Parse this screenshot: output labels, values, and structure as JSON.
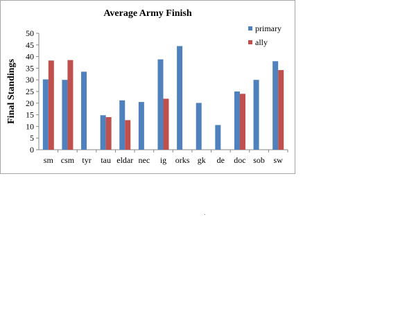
{
  "chart_data": {
    "type": "bar",
    "title": "Average Army Finish",
    "ylabel": "Final Standings",
    "xlabel": "",
    "ylim": [
      0,
      50
    ],
    "yticks": [
      0,
      5,
      10,
      15,
      20,
      25,
      30,
      35,
      40,
      45,
      50
    ],
    "grid": false,
    "legend_position": "top-right",
    "categories": [
      "sm",
      "csm",
      "tyr",
      "tau",
      "eldar",
      "nec",
      "ig",
      "orks",
      "gk",
      "de",
      "doc",
      "sob",
      "sw"
    ],
    "series": [
      {
        "name": "primary",
        "color": "#4f81bd",
        "values": [
          30.2,
          30.0,
          33.5,
          14.8,
          21.2,
          20.5,
          38.8,
          44.5,
          20.1,
          10.6,
          25.0,
          30.0,
          38.0
        ]
      },
      {
        "name": "ally",
        "color": "#c0504d",
        "values": [
          38.3,
          38.5,
          null,
          14.0,
          12.7,
          null,
          21.9,
          null,
          null,
          null,
          24.0,
          null,
          34.2
        ]
      }
    ]
  }
}
